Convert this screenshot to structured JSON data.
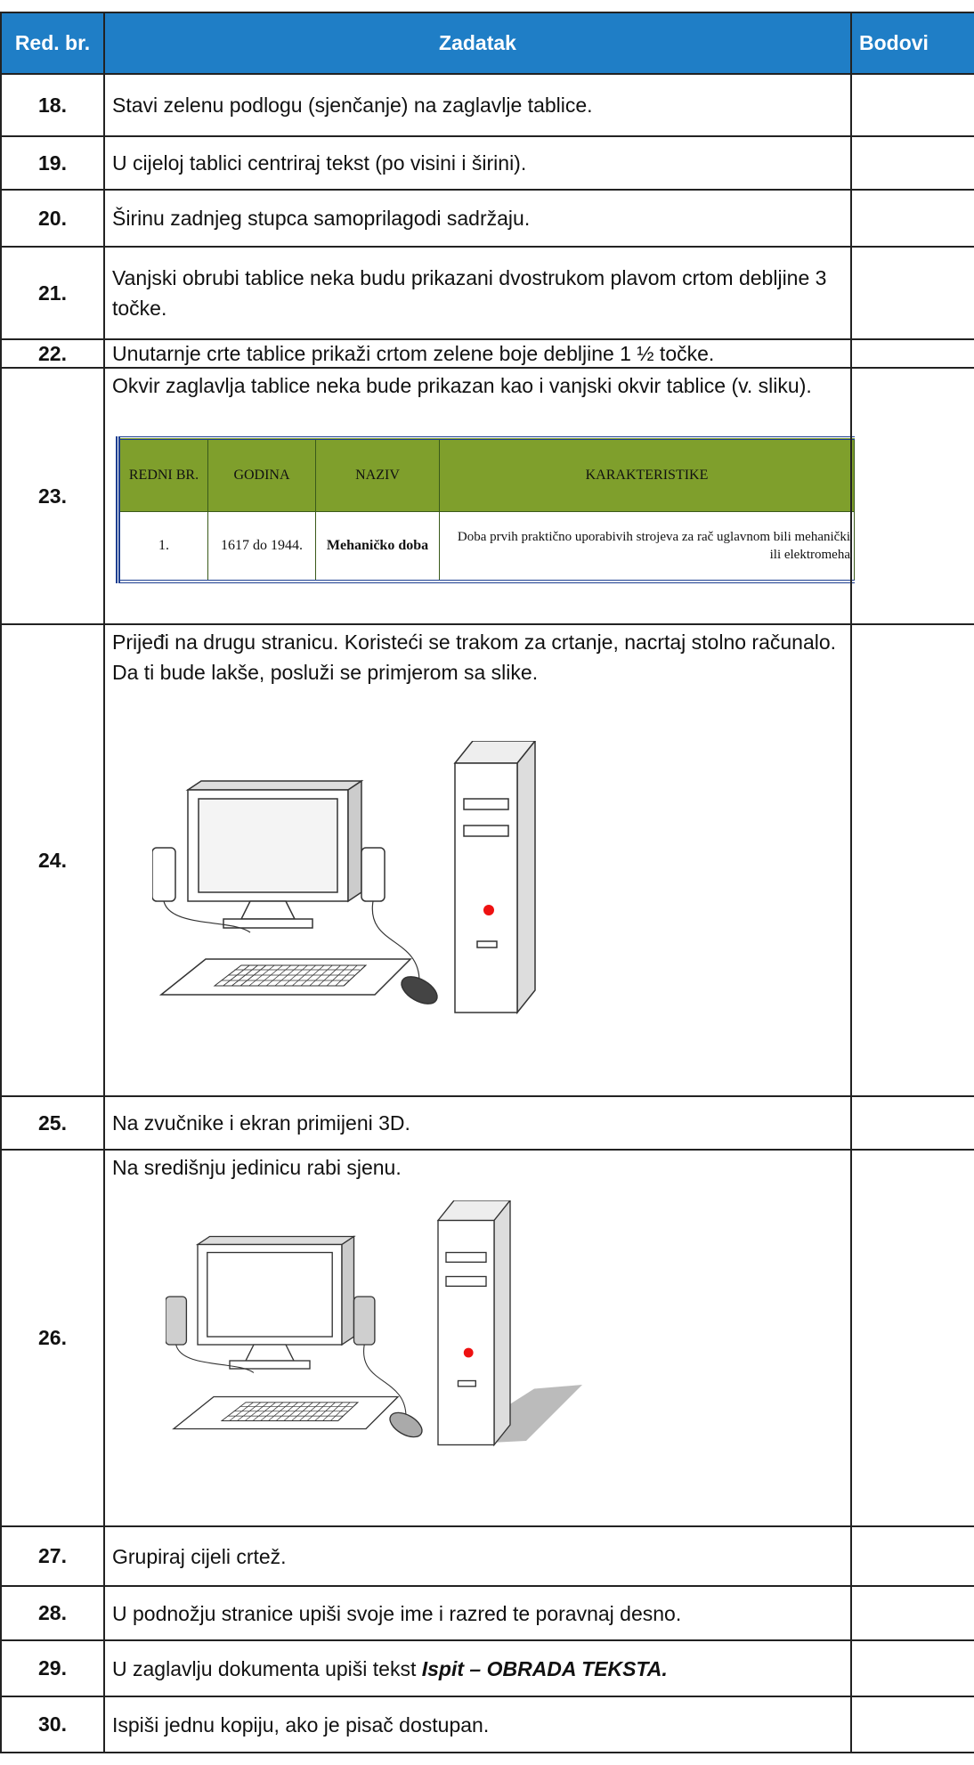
{
  "header": {
    "col_number": "Red. br.",
    "col_task": "Zadatak",
    "col_points": "Bodovi"
  },
  "rows": [
    {
      "number": "18.",
      "task": "Stavi zelenu podlogu (sjenčanje) na zaglavlje tablice."
    },
    {
      "number": "19.",
      "task": "U cijeloj tablici centriraj tekst (po visini i širini)."
    },
    {
      "number": "20.",
      "task": "Širinu zadnjeg stupca samoprilagodi sadržaju."
    },
    {
      "number": "21.",
      "task": "Vanjski obrubi tablice neka budu prikazani dvostrukom plavom crtom debljine 3 točke."
    },
    {
      "number": "22.",
      "task": "Unutarnje crte tablice prikaži crtom zelene boje debljine 1 ½ točke."
    },
    {
      "number": "23.",
      "task": "Okvir zaglavlja tablice neka bude prikazan kao i vanjski okvir tablice (v. sliku).",
      "example_table": {
        "headers": [
          "REDNI BR.",
          "GODINA",
          "NAZIV",
          "KARAKTERISTIKE"
        ],
        "row": [
          "1.",
          "1617 do 1944.",
          "Mehaničko doba",
          "Doba prvih praktično uporabivih strojeva za rač uglavnom bili mehanički ili elektromeha"
        ]
      }
    },
    {
      "number": "24.",
      "task": "Prijeđi na drugu stranicu. Koristeći se trakom za crtanje, nacrtaj stolno računalo. Da ti bude lakše, posluži se primjerom sa slike."
    },
    {
      "number": "25.",
      "task": "Na zvučnike i ekran primijeni 3D."
    },
    {
      "number": "26.",
      "task": "Na središnju jedinicu rabi sjenu."
    },
    {
      "number": "27.",
      "task": "Grupiraj cijeli crtež."
    },
    {
      "number": "28.",
      "task": "U podnožju stranice upiši svoje ime i razred te poravnaj desno."
    },
    {
      "number": "29.",
      "task": "U zaglavlju dokumenta upiši tekst",
      "task_emphasis": "Ispit – OBRADA TEKSTA."
    },
    {
      "number": "30.",
      "task": "Ispiši jednu kopiju, ako je pisač dostupan."
    }
  ]
}
